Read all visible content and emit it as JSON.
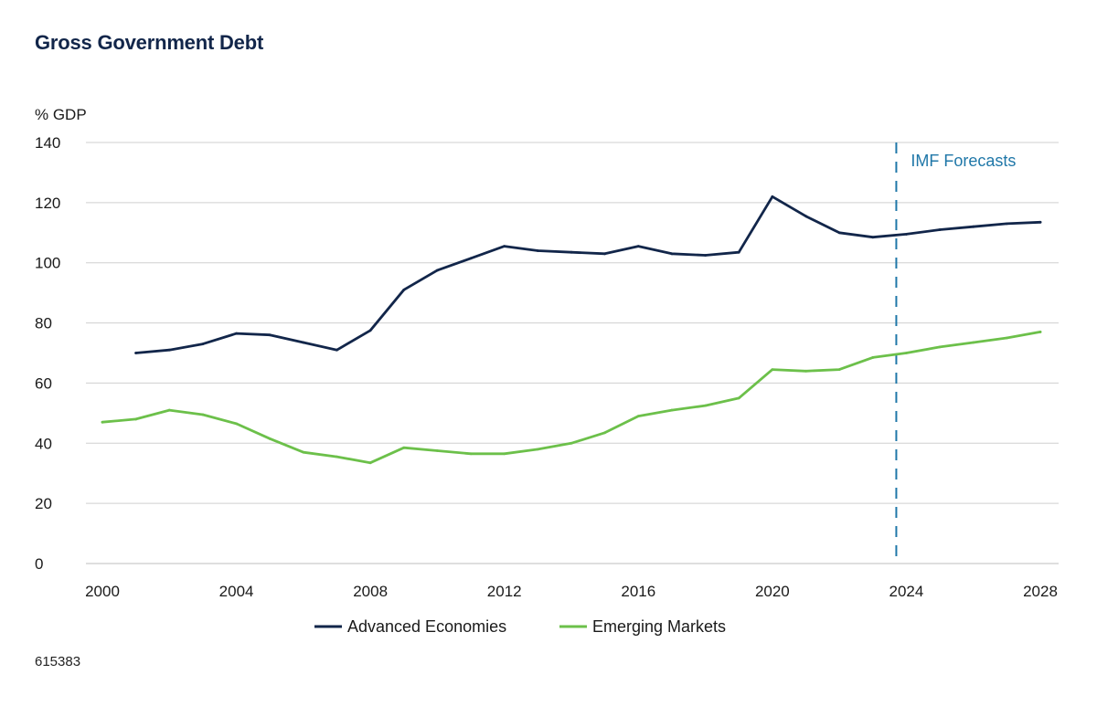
{
  "chart_data": {
    "type": "line",
    "title": "Gross Government Debt",
    "ylabel": "% GDP",
    "xlabel": "",
    "xlim": [
      2000,
      2028
    ],
    "ylim": [
      0,
      140
    ],
    "xticks": [
      2000,
      2004,
      2008,
      2012,
      2016,
      2020,
      2024,
      2028
    ],
    "yticks": [
      0,
      20,
      40,
      60,
      80,
      100,
      120,
      140
    ],
    "grid": "horizontal",
    "legend_position": "bottom",
    "series": [
      {
        "name": "Advanced Economies",
        "color": "#12264a",
        "x": [
          2001,
          2002,
          2003,
          2004,
          2005,
          2006,
          2007,
          2008,
          2009,
          2010,
          2011,
          2012,
          2013,
          2014,
          2015,
          2016,
          2017,
          2018,
          2019,
          2020,
          2021,
          2022,
          2023,
          2024,
          2025,
          2026,
          2027,
          2028
        ],
        "values": [
          70,
          71,
          73,
          76.5,
          76,
          73.5,
          71,
          77.5,
          91,
          97.5,
          101.5,
          105.5,
          104,
          103.5,
          103,
          105.5,
          103,
          102.5,
          103.5,
          122,
          115.5,
          110,
          108.5,
          109.5,
          111,
          112,
          113,
          113.5
        ]
      },
      {
        "name": "Emerging Markets",
        "color": "#6cc04a",
        "x": [
          2000,
          2001,
          2002,
          2003,
          2004,
          2005,
          2006,
          2007,
          2008,
          2009,
          2010,
          2011,
          2012,
          2013,
          2014,
          2015,
          2016,
          2017,
          2018,
          2019,
          2020,
          2021,
          2022,
          2023,
          2024,
          2025,
          2026,
          2027,
          2028
        ],
        "values": [
          47,
          48,
          51,
          49.5,
          46.5,
          41.5,
          37,
          35.5,
          33.5,
          38.5,
          37.5,
          36.5,
          36.5,
          38,
          40,
          43.5,
          49,
          51,
          52.5,
          55,
          64.5,
          64,
          64.5,
          68.5,
          70,
          72,
          73.5,
          75,
          77
        ]
      }
    ],
    "annotations": [
      {
        "text": "IMF Forecasts",
        "x": 2023.7,
        "style": "dashed-vertical-line",
        "color": "#1f77a8"
      }
    ]
  },
  "footnote": "615383"
}
